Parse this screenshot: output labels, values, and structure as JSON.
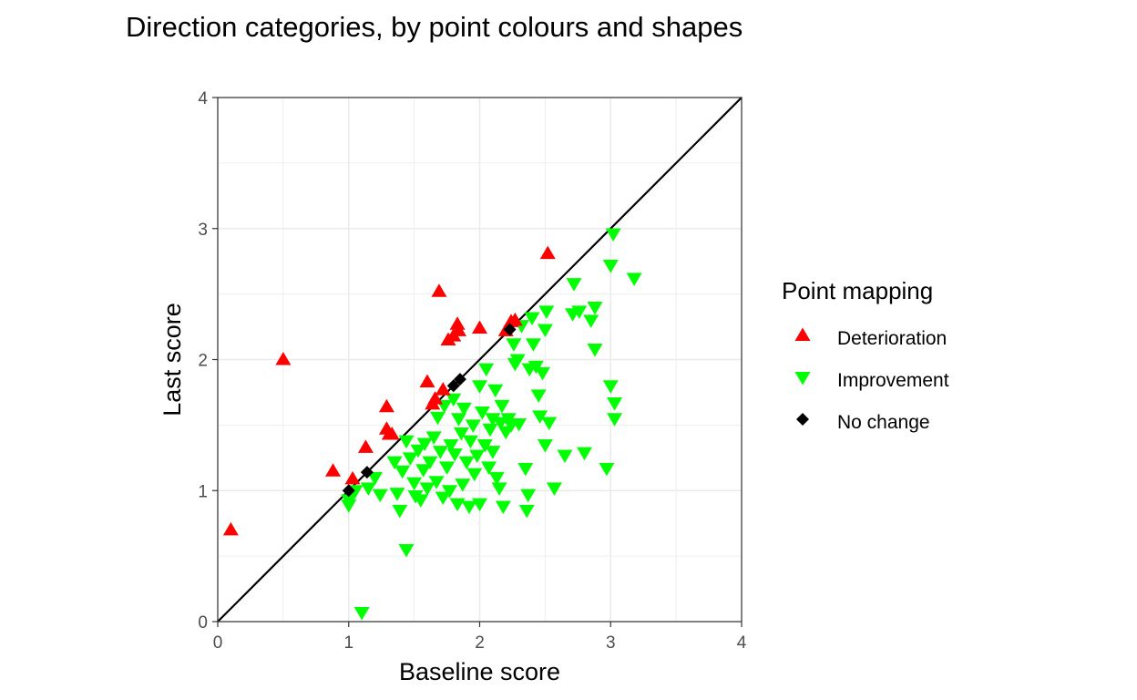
{
  "chart_data": {
    "type": "scatter",
    "title": "Direction categories, by point colours and shapes",
    "xlabel": "Baseline score",
    "ylabel": "Last score",
    "xlim": [
      0,
      4
    ],
    "ylim": [
      0,
      4
    ],
    "xticks": [
      "0",
      "1",
      "2",
      "3",
      "4"
    ],
    "yticks": [
      "0",
      "1",
      "2",
      "3",
      "4"
    ],
    "grid": true,
    "reference_line": "y = x",
    "legend": {
      "title": "Point mapping",
      "placement": "right"
    },
    "series": [
      {
        "name": "Deterioration",
        "shape": "triangle-up",
        "color": "#ff0000",
        "points": [
          [
            0.1,
            0.7
          ],
          [
            0.5,
            2.0
          ],
          [
            0.88,
            1.15
          ],
          [
            1.03,
            1.09
          ],
          [
            1.13,
            1.33
          ],
          [
            1.29,
            1.64
          ],
          [
            1.29,
            1.47
          ],
          [
            1.31,
            1.43
          ],
          [
            1.33,
            1.43
          ],
          [
            1.6,
            1.83
          ],
          [
            1.64,
            1.66
          ],
          [
            1.66,
            1.7
          ],
          [
            1.69,
            2.52
          ],
          [
            1.72,
            1.77
          ],
          [
            1.76,
            2.15
          ],
          [
            1.8,
            2.18
          ],
          [
            1.83,
            2.27
          ],
          [
            1.84,
            2.22
          ],
          [
            2.0,
            2.24
          ],
          [
            2.2,
            2.22
          ],
          [
            2.24,
            2.29
          ],
          [
            2.27,
            2.3
          ],
          [
            2.52,
            2.81
          ]
        ]
      },
      {
        "name": "Improvement",
        "shape": "triangle-down",
        "color": "#00ff00",
        "points": [
          [
            1.0,
            0.89
          ],
          [
            1.0,
            0.93
          ],
          [
            1.03,
            0.97
          ],
          [
            1.05,
            1.0
          ],
          [
            1.1,
            0.07
          ],
          [
            1.15,
            1.02
          ],
          [
            1.2,
            1.1
          ],
          [
            1.24,
            0.97
          ],
          [
            1.35,
            1.22
          ],
          [
            1.37,
            0.98
          ],
          [
            1.39,
            0.85
          ],
          [
            1.41,
            1.15
          ],
          [
            1.44,
            1.38
          ],
          [
            1.44,
            0.55
          ],
          [
            1.47,
            1.25
          ],
          [
            1.5,
            1.06
          ],
          [
            1.51,
            0.96
          ],
          [
            1.53,
            1.31
          ],
          [
            1.55,
            0.93
          ],
          [
            1.57,
            1.16
          ],
          [
            1.58,
            1.36
          ],
          [
            1.6,
            1.02
          ],
          [
            1.62,
            1.22
          ],
          [
            1.65,
            1.41
          ],
          [
            1.67,
            1.07
          ],
          [
            1.68,
            1.56
          ],
          [
            1.7,
            1.3
          ],
          [
            1.72,
            0.95
          ],
          [
            1.73,
            1.65
          ],
          [
            1.75,
            1.18
          ],
          [
            1.77,
            1.0
          ],
          [
            1.78,
            1.35
          ],
          [
            1.8,
            1.7
          ],
          [
            1.81,
            1.28
          ],
          [
            1.83,
            0.9
          ],
          [
            1.84,
            1.55
          ],
          [
            1.86,
            1.44
          ],
          [
            1.87,
            1.05
          ],
          [
            1.88,
            1.63
          ],
          [
            1.9,
            1.22
          ],
          [
            1.92,
            0.88
          ],
          [
            1.93,
            1.38
          ],
          [
            1.95,
            1.5
          ],
          [
            1.96,
            1.13
          ],
          [
            1.98,
            1.27
          ],
          [
            2.0,
            1.8
          ],
          [
            2.0,
            0.9
          ],
          [
            2.02,
            1.6
          ],
          [
            2.04,
            1.35
          ],
          [
            2.05,
            1.93
          ],
          [
            2.07,
            1.18
          ],
          [
            2.08,
            1.47
          ],
          [
            2.1,
            1.55
          ],
          [
            2.1,
            1.3
          ],
          [
            2.12,
            1.77
          ],
          [
            2.13,
            1.1
          ],
          [
            2.15,
            1.02
          ],
          [
            2.16,
            1.52
          ],
          [
            2.17,
            1.65
          ],
          [
            2.18,
            0.88
          ],
          [
            2.2,
            1.45
          ],
          [
            2.22,
            1.55
          ],
          [
            2.24,
            1.5
          ],
          [
            2.26,
            2.12
          ],
          [
            2.27,
            1.97
          ],
          [
            2.29,
            2.0
          ],
          [
            2.3,
            1.51
          ],
          [
            2.32,
            2.26
          ],
          [
            2.35,
            1.17
          ],
          [
            2.36,
            0.85
          ],
          [
            2.37,
            0.97
          ],
          [
            2.38,
            1.93
          ],
          [
            2.4,
            2.32
          ],
          [
            2.41,
            2.12
          ],
          [
            2.43,
            1.95
          ],
          [
            2.45,
            1.73
          ],
          [
            2.46,
            1.57
          ],
          [
            2.48,
            1.9
          ],
          [
            2.5,
            1.35
          ],
          [
            2.5,
            2.23
          ],
          [
            2.51,
            2.37
          ],
          [
            2.53,
            1.52
          ],
          [
            2.57,
            1.02
          ],
          [
            2.65,
            1.27
          ],
          [
            2.71,
            2.35
          ],
          [
            2.72,
            2.58
          ],
          [
            2.76,
            2.37
          ],
          [
            2.8,
            1.29
          ],
          [
            2.85,
            2.3
          ],
          [
            2.88,
            2.4
          ],
          [
            2.88,
            2.08
          ],
          [
            2.97,
            1.17
          ],
          [
            3.0,
            1.8
          ],
          [
            3.0,
            2.72
          ],
          [
            3.02,
            2.96
          ],
          [
            3.03,
            1.67
          ],
          [
            3.03,
            1.55
          ],
          [
            3.18,
            2.62
          ]
        ]
      },
      {
        "name": "No change",
        "shape": "diamond",
        "color": "#000000",
        "points": [
          [
            1.0,
            1.0
          ],
          [
            1.14,
            1.14
          ],
          [
            1.8,
            1.8
          ],
          [
            1.85,
            1.85
          ],
          [
            2.23,
            2.23
          ]
        ]
      }
    ]
  }
}
